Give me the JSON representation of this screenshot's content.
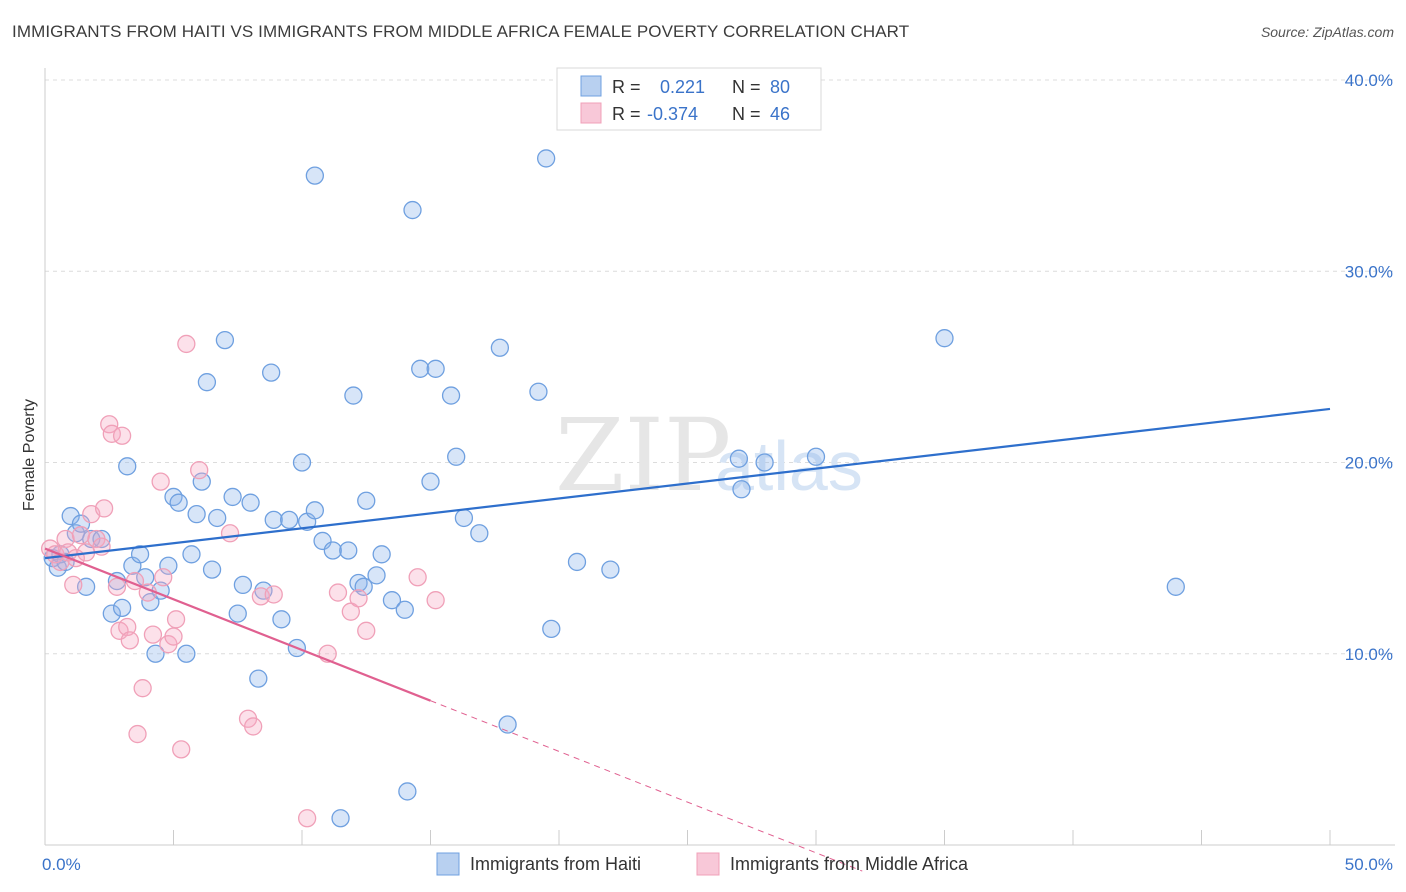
{
  "title": "IMMIGRANTS FROM HAITI VS IMMIGRANTS FROM MIDDLE AFRICA FEMALE POVERTY CORRELATION CHART",
  "source": "Source: ZipAtlas.com",
  "watermark": {
    "zip": "ZIP",
    "atlas": "atlas"
  },
  "colors": {
    "haiti": "#6fa0e0",
    "haiti_line": "#2e6fcc",
    "africa": "#f0a0b8",
    "africa_line": "#e06090",
    "label": "#3a73c9"
  },
  "legend": {
    "rows": [
      {
        "r_label": "R =",
        "r_value": "0.221",
        "n_label": "N =",
        "n_value": "80"
      },
      {
        "r_label": "R =",
        "r_value": "-0.374",
        "n_label": "N =",
        "n_value": "46"
      }
    ]
  },
  "bottom_legend": {
    "haiti": "Immigrants from Haiti",
    "africa": "Immigrants from Middle Africa"
  },
  "chart_data": {
    "type": "scatter",
    "xlabel": "",
    "ylabel": "Female Poverty",
    "xlim": [
      0,
      50
    ],
    "ylim": [
      0,
      40
    ],
    "x_tick_labels": [
      "0.0%",
      "50.0%"
    ],
    "y_tick_labels": [
      "10.0%",
      "20.0%",
      "30.0%",
      "40.0%"
    ],
    "y_ticks": [
      10,
      20,
      30,
      40
    ],
    "series": [
      {
        "name": "Immigrants from Haiti",
        "trend": {
          "x": [
            0,
            50
          ],
          "y": [
            15.0,
            22.8
          ],
          "solid_until": 50
        },
        "points": [
          [
            0.3,
            15.0
          ],
          [
            0.5,
            14.5
          ],
          [
            0.6,
            15.2
          ],
          [
            0.8,
            14.8
          ],
          [
            1.0,
            17.2
          ],
          [
            1.2,
            16.3
          ],
          [
            1.4,
            16.8
          ],
          [
            1.6,
            13.5
          ],
          [
            1.8,
            16.0
          ],
          [
            2.2,
            16.0
          ],
          [
            2.6,
            12.1
          ],
          [
            2.8,
            13.8
          ],
          [
            3.0,
            12.4
          ],
          [
            3.2,
            19.8
          ],
          [
            3.4,
            14.6
          ],
          [
            3.7,
            15.2
          ],
          [
            3.9,
            14.0
          ],
          [
            4.1,
            12.7
          ],
          [
            4.3,
            10.0
          ],
          [
            4.5,
            13.3
          ],
          [
            4.8,
            14.6
          ],
          [
            5.0,
            18.2
          ],
          [
            5.2,
            17.9
          ],
          [
            5.5,
            10.0
          ],
          [
            5.7,
            15.2
          ],
          [
            5.9,
            17.3
          ],
          [
            6.1,
            19.0
          ],
          [
            6.3,
            24.2
          ],
          [
            6.5,
            14.4
          ],
          [
            6.7,
            17.1
          ],
          [
            7.0,
            26.4
          ],
          [
            7.3,
            18.2
          ],
          [
            7.5,
            12.1
          ],
          [
            7.7,
            13.6
          ],
          [
            8.0,
            17.9
          ],
          [
            8.3,
            8.7
          ],
          [
            8.5,
            13.3
          ],
          [
            8.8,
            24.7
          ],
          [
            8.9,
            17.0
          ],
          [
            9.2,
            11.8
          ],
          [
            9.5,
            17.0
          ],
          [
            9.8,
            10.3
          ],
          [
            10.0,
            20.0
          ],
          [
            10.2,
            16.9
          ],
          [
            10.5,
            17.5
          ],
          [
            10.8,
            15.9
          ],
          [
            10.5,
            35.0
          ],
          [
            11.2,
            15.4
          ],
          [
            11.5,
            1.4
          ],
          [
            11.8,
            15.4
          ],
          [
            12.0,
            23.5
          ],
          [
            12.2,
            13.7
          ],
          [
            12.4,
            13.5
          ],
          [
            12.5,
            18.0
          ],
          [
            12.9,
            14.1
          ],
          [
            13.1,
            15.2
          ],
          [
            13.5,
            12.8
          ],
          [
            14.0,
            12.3
          ],
          [
            14.1,
            2.8
          ],
          [
            14.3,
            33.2
          ],
          [
            14.6,
            24.9
          ],
          [
            15.0,
            19.0
          ],
          [
            15.2,
            24.9
          ],
          [
            15.8,
            23.5
          ],
          [
            16.0,
            20.3
          ],
          [
            16.3,
            17.1
          ],
          [
            16.9,
            16.3
          ],
          [
            17.7,
            26.0
          ],
          [
            18.0,
            6.3
          ],
          [
            19.2,
            23.7
          ],
          [
            19.5,
            35.9
          ],
          [
            19.7,
            11.3
          ],
          [
            20.7,
            14.8
          ],
          [
            22.0,
            14.4
          ],
          [
            27.0,
            20.2
          ],
          [
            27.1,
            18.6
          ],
          [
            28.0,
            20.0
          ],
          [
            30.0,
            20.3
          ],
          [
            35.0,
            26.5
          ],
          [
            44.0,
            13.5
          ]
        ]
      },
      {
        "name": "Immigrants from Middle Africa",
        "trend": {
          "x": [
            0,
            33
          ],
          "y": [
            15.5,
            -2.0
          ],
          "solid_until": 15
        },
        "points": [
          [
            0.2,
            15.5
          ],
          [
            0.4,
            15.2
          ],
          [
            0.6,
            14.8
          ],
          [
            0.8,
            16.0
          ],
          [
            0.9,
            15.3
          ],
          [
            1.1,
            13.6
          ],
          [
            1.2,
            15.0
          ],
          [
            1.4,
            16.2
          ],
          [
            1.6,
            15.3
          ],
          [
            1.8,
            17.3
          ],
          [
            2.0,
            16.0
          ],
          [
            2.2,
            15.6
          ],
          [
            2.3,
            17.6
          ],
          [
            2.5,
            22.0
          ],
          [
            2.6,
            21.5
          ],
          [
            2.8,
            13.5
          ],
          [
            2.9,
            11.2
          ],
          [
            3.0,
            21.4
          ],
          [
            3.2,
            11.4
          ],
          [
            3.3,
            10.7
          ],
          [
            3.5,
            13.8
          ],
          [
            3.6,
            5.8
          ],
          [
            3.8,
            8.2
          ],
          [
            4.0,
            13.2
          ],
          [
            4.2,
            11.0
          ],
          [
            4.5,
            19.0
          ],
          [
            4.6,
            14.0
          ],
          [
            4.8,
            10.5
          ],
          [
            5.0,
            10.9
          ],
          [
            5.1,
            11.8
          ],
          [
            5.3,
            5.0
          ],
          [
            5.5,
            26.2
          ],
          [
            6.0,
            19.6
          ],
          [
            7.2,
            16.3
          ],
          [
            7.9,
            6.6
          ],
          [
            8.1,
            6.2
          ],
          [
            8.4,
            13.0
          ],
          [
            8.9,
            13.1
          ],
          [
            10.2,
            1.4
          ],
          [
            11.0,
            10.0
          ],
          [
            11.4,
            13.2
          ],
          [
            11.9,
            12.2
          ],
          [
            12.2,
            12.9
          ],
          [
            12.5,
            11.2
          ],
          [
            14.5,
            14.0
          ],
          [
            15.2,
            12.8
          ]
        ]
      }
    ]
  }
}
